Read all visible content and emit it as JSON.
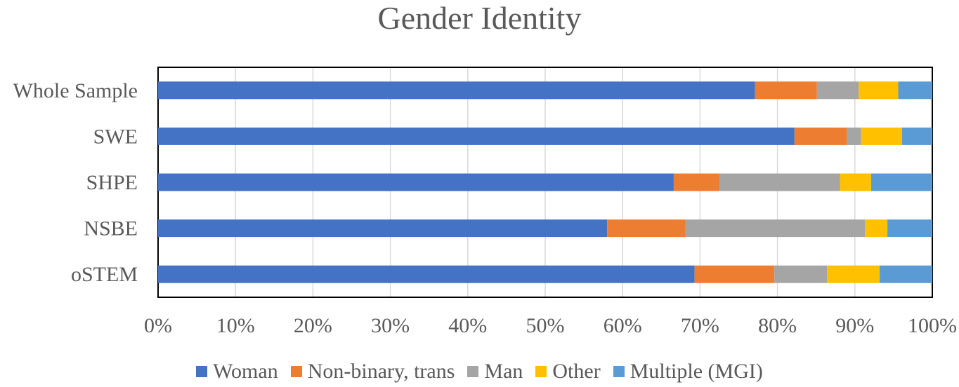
{
  "chart_data": {
    "type": "bar",
    "orientation": "horizontal",
    "stacked": "percent",
    "title": "Gender Identity",
    "categories": [
      "Whole Sample",
      "SWE",
      "SHPE",
      "NSBE",
      "oSTEM"
    ],
    "series": [
      {
        "name": "Woman",
        "color": "#4472C4",
        "values": [
          77.1,
          82.2,
          66.6,
          58.0,
          69.3
        ]
      },
      {
        "name": "Non-binary, trans",
        "color": "#ED7D31",
        "values": [
          8.0,
          6.8,
          5.9,
          10.1,
          10.3
        ]
      },
      {
        "name": "Man",
        "color": "#A5A5A5",
        "values": [
          5.4,
          1.8,
          15.6,
          23.2,
          6.8
        ]
      },
      {
        "name": "Other",
        "color": "#FFC000",
        "values": [
          5.1,
          5.3,
          4.0,
          2.9,
          6.8
        ]
      },
      {
        "name": "Multiple (MGI)",
        "color": "#5B9BD5",
        "values": [
          4.4,
          3.9,
          7.9,
          5.8,
          6.8
        ]
      }
    ],
    "xlim": [
      0,
      100
    ],
    "xticks": [
      "0%",
      "10%",
      "20%",
      "30%",
      "40%",
      "50%",
      "60%",
      "70%",
      "80%",
      "90%",
      "100%"
    ],
    "grid": true,
    "legend_position": "bottom"
  }
}
